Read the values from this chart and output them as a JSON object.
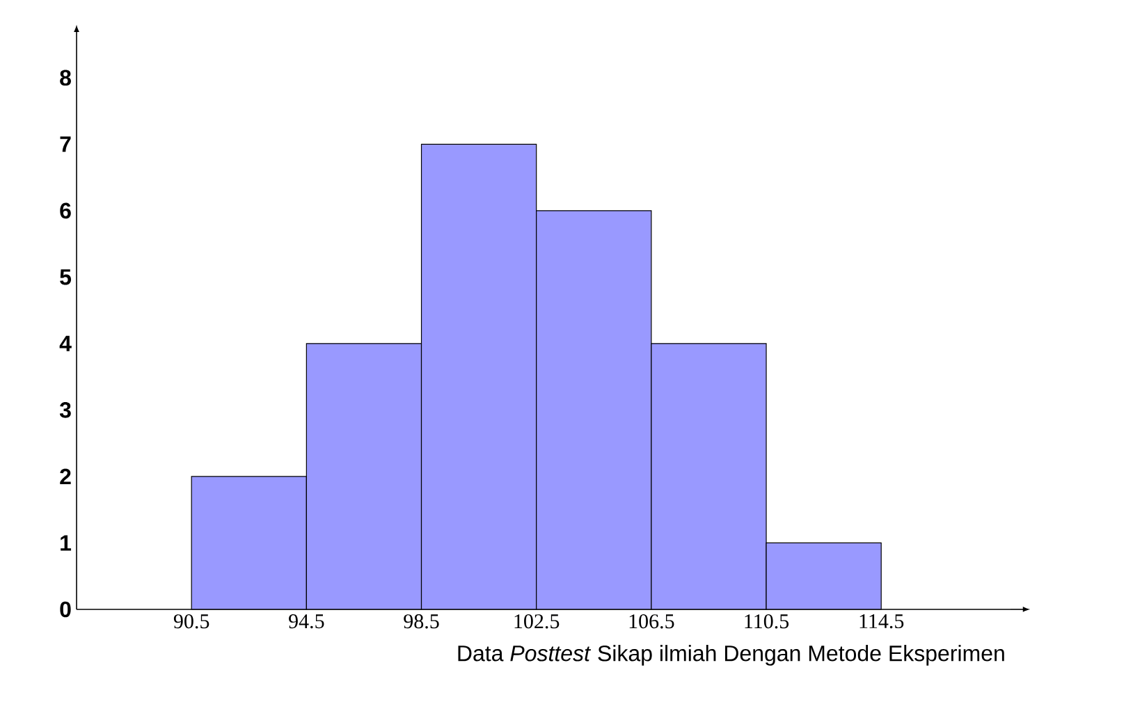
{
  "chart_data": {
    "type": "histogram",
    "xlabel": "Data *Posttest* Sikap ilmiah Dengan Metode Eksperimen",
    "bins": [
      90.5,
      94.5,
      98.5,
      102.5,
      106.5,
      110.5,
      114.5
    ],
    "values": [
      2,
      4,
      7,
      6,
      4,
      1
    ],
    "color": "#9999ff",
    "xlim": [
      86.5,
      119
    ],
    "ylim": [
      0,
      8.5
    ],
    "xticks": [
      90.5,
      94.5,
      98.5,
      102.5,
      106.5,
      110.5,
      114.5
    ],
    "yticks": [
      0,
      1,
      2,
      3,
      4,
      5,
      6,
      7,
      8
    ],
    "grid": false
  }
}
